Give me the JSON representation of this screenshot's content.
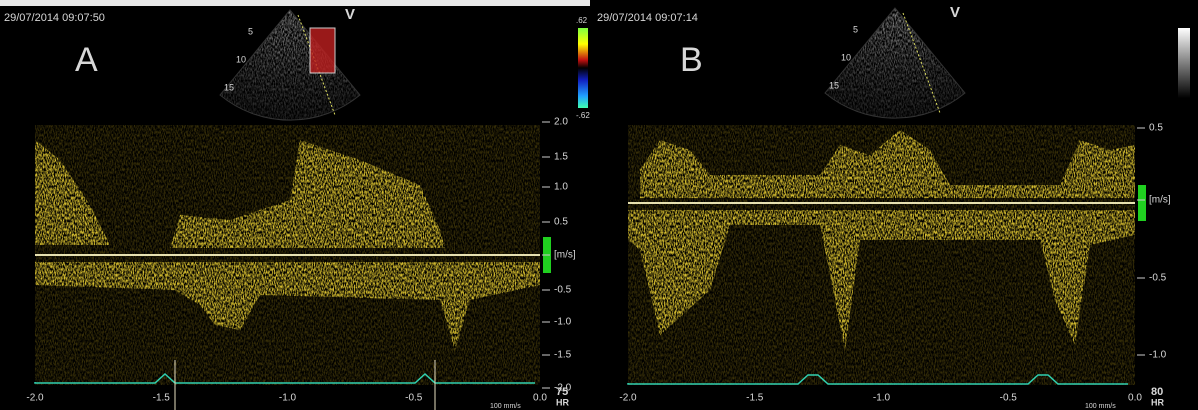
{
  "panels": [
    {
      "timestamp": "29/07/2014 09:07:50",
      "letter": "A",
      "view_marker": "V",
      "depth_labels": [
        "5",
        "10",
        "15"
      ],
      "color_scale": [
        ".62",
        "-.62"
      ],
      "y_ticks": [
        "2.0",
        "1.5",
        "1.0",
        "0.5",
        "[m/s]",
        "-0.5",
        "-1.0",
        "-1.5",
        "-2.0"
      ],
      "x_ticks": [
        "-2.0",
        "-1.5",
        "-1.0",
        "-0.5",
        "0.0"
      ],
      "sweep_speed": "100 mm/s",
      "heart_rate": "75",
      "heart_rate_unit": "HR"
    },
    {
      "timestamp": "29/07/2014 09:07:14",
      "letter": "B",
      "view_marker": "V",
      "depth_labels": [
        "5",
        "10",
        "15"
      ],
      "y_ticks": [
        "0.5",
        "[m/s]",
        "-0.5",
        "-1.0"
      ],
      "x_ticks": [
        "-2.0",
        "-1.5",
        "-1.0",
        "-0.5",
        "0.0"
      ],
      "sweep_speed": "100 mm/s",
      "heart_rate": "80",
      "heart_rate_unit": "HR"
    }
  ]
}
